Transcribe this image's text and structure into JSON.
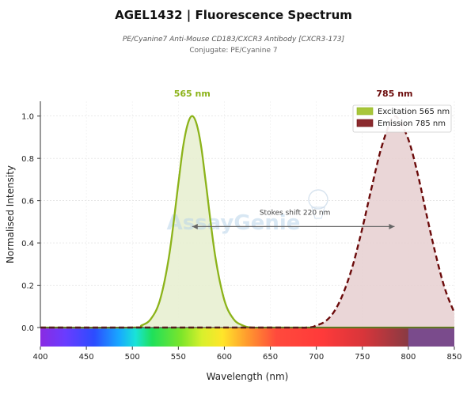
{
  "header": {
    "title": "AGEL1432  |  Fluorescence Spectrum",
    "subtitle": "PE/Cyanine7 Anti-Mouse CD183/CXCR3 Antibody [CXCR3-173]",
    "conjugate": "Conjugate: PE/Cyanine 7"
  },
  "watermark": "AssayGenie",
  "chart_data": {
    "type": "line",
    "xlabel": "Wavelength (nm)",
    "ylabel": "Normalised Intensity",
    "xlim": [
      400,
      850
    ],
    "ylim": [
      0,
      1.07
    ],
    "x_ticks": [
      400,
      450,
      500,
      550,
      600,
      650,
      700,
      750,
      800,
      850
    ],
    "y_ticks": [
      0.0,
      0.2,
      0.4,
      0.6,
      0.8,
      1.0
    ],
    "y_tick_labels": [
      "0.0",
      "0.2",
      "0.4",
      "0.6",
      "0.8",
      "1.0"
    ],
    "grid": true,
    "legend_position": "top-right",
    "series": [
      {
        "name": "Excitation",
        "legend_label": "Excitation  565 nm",
        "peak_label": "565 nm",
        "peak": 565,
        "color": "#8cb31a",
        "fill": "#e6efcf",
        "style": "solid",
        "x": [
          400,
          500,
          510,
          520,
          530,
          540,
          550,
          555,
          560,
          565,
          570,
          575,
          580,
          590,
          600,
          610,
          620,
          630,
          650,
          700,
          850
        ],
        "y": [
          0,
          0,
          0.01,
          0.04,
          0.13,
          0.34,
          0.68,
          0.85,
          0.96,
          1.0,
          0.96,
          0.85,
          0.68,
          0.34,
          0.13,
          0.04,
          0.01,
          0,
          0,
          0,
          0
        ]
      },
      {
        "name": "Emission",
        "legend_label": "Emission  785 nm",
        "peak_label": "785 nm",
        "peak": 785,
        "color": "#6b0a0a",
        "fill": "#e6cfd0",
        "style": "dashed",
        "x": [
          400,
          650,
          690,
          700,
          710,
          720,
          730,
          740,
          750,
          760,
          770,
          780,
          785,
          790,
          800,
          810,
          820,
          830,
          840,
          850
        ],
        "y": [
          0,
          0,
          0.0,
          0.01,
          0.03,
          0.08,
          0.17,
          0.3,
          0.47,
          0.66,
          0.84,
          0.97,
          1.0,
          0.98,
          0.89,
          0.73,
          0.53,
          0.34,
          0.18,
          0.07
        ]
      }
    ],
    "annotation": {
      "text": "Stokes shift  220 nm",
      "from": 565,
      "to": 785,
      "y": 0.44
    }
  }
}
